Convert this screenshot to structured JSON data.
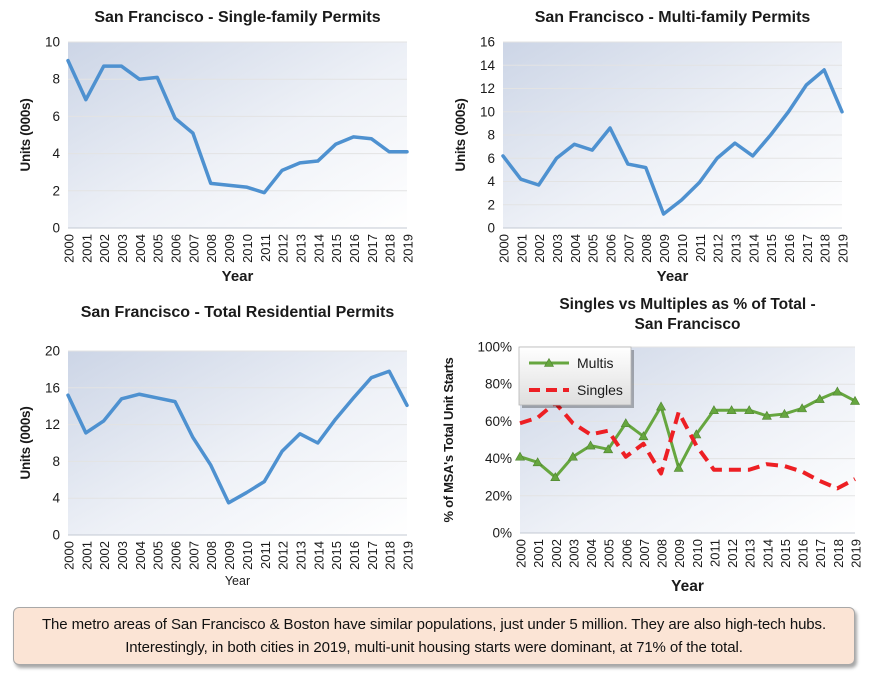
{
  "caption": {
    "lines": [
      "The metro areas of San Francisco & Boston have similar populations, just under 5 million. They are also high-tech hubs.",
      "Interestingly, in both cities in 2019, multi-unit housing starts were dominant, at 71% of the total."
    ]
  },
  "colors": {
    "blue": "#4e91d0",
    "green": "#66a63f",
    "green_dark": "#4e8430",
    "red": "#ed1f24",
    "grid": "#e3e3e3",
    "axis": "#c3c9d3",
    "plot_gradient_start": "#ccd5e6",
    "plot_gradient_mid": "#eef1f7",
    "plot_gradient_end": "#ffffff",
    "caption_bg": "#fbe4d5",
    "caption_border": "#a8a8a8"
  },
  "chart_data": [
    {
      "id": "single-family-permits",
      "type": "line",
      "title": [
        "San Francisco - Single-family Permits"
      ],
      "xlabel": "Year",
      "ylabel": "Units (000s)",
      "x": [
        "2000",
        "2001",
        "2002",
        "2003",
        "2004",
        "2005",
        "2006",
        "2007",
        "2008",
        "2009",
        "2010",
        "2011",
        "2012",
        "2013",
        "2014",
        "2015",
        "2016",
        "2017",
        "2018",
        "2019"
      ],
      "ylim": [
        0,
        10
      ],
      "yticks": [
        0,
        2,
        4,
        6,
        8,
        10
      ],
      "ytick_labels": [
        "0",
        "2",
        "4",
        "6",
        "8",
        "10"
      ],
      "grid": true,
      "legend": null,
      "series": [
        {
          "name": "Single-family permits",
          "color": "blue",
          "style": "solid",
          "marker": null,
          "values": [
            9.0,
            6.9,
            8.7,
            8.7,
            8.0,
            8.1,
            5.9,
            5.1,
            2.4,
            2.3,
            2.2,
            1.9,
            3.1,
            3.5,
            3.6,
            4.5,
            4.9,
            4.8,
            4.1,
            4.1
          ]
        }
      ]
    },
    {
      "id": "multi-family-permits",
      "type": "line",
      "title": [
        "San Francisco - Multi-family Permits"
      ],
      "xlabel": "Year",
      "ylabel": "Units (000s)",
      "x": [
        "2000",
        "2001",
        "2002",
        "2003",
        "2004",
        "2005",
        "2006",
        "2007",
        "2008",
        "2009",
        "2010",
        "2011",
        "2012",
        "2013",
        "2014",
        "2015",
        "2016",
        "2017",
        "2018",
        "2019"
      ],
      "ylim": [
        0,
        16
      ],
      "yticks": [
        0,
        2,
        4,
        6,
        8,
        10,
        12,
        14,
        16
      ],
      "ytick_labels": [
        "0",
        "2",
        "4",
        "6",
        "8",
        "10",
        "12",
        "14",
        "16"
      ],
      "grid": true,
      "legend": null,
      "series": [
        {
          "name": "Multi-family permits",
          "color": "blue",
          "style": "solid",
          "marker": null,
          "values": [
            6.2,
            4.2,
            3.7,
            6.0,
            7.2,
            6.7,
            8.6,
            5.5,
            5.2,
            1.2,
            2.4,
            3.9,
            6.0,
            7.3,
            6.2,
            8.0,
            10.0,
            12.3,
            13.6,
            10.0
          ]
        }
      ]
    },
    {
      "id": "total-residential-permits",
      "type": "line",
      "title": [
        "San Francisco - Total Residential Permits"
      ],
      "xlabel": "Year",
      "ylabel": "Units (000s)",
      "x": [
        "2000",
        "2001",
        "2002",
        "2003",
        "2004",
        "2005",
        "2006",
        "2007",
        "2008",
        "2009",
        "2010",
        "2011",
        "2012",
        "2013",
        "2014",
        "2015",
        "2016",
        "2017",
        "2018",
        "2019"
      ],
      "ylim": [
        0,
        20
      ],
      "yticks": [
        0,
        4,
        8,
        12,
        16,
        20
      ],
      "ytick_labels": [
        "0",
        "4",
        "8",
        "12",
        "16",
        "20"
      ],
      "grid": true,
      "legend": null,
      "series": [
        {
          "name": "Total residential permits",
          "color": "blue",
          "style": "solid",
          "marker": null,
          "values": [
            15.2,
            11.1,
            12.4,
            14.8,
            15.3,
            14.9,
            14.5,
            10.6,
            7.6,
            3.5,
            4.6,
            5.8,
            9.1,
            11.0,
            10.0,
            12.6,
            14.9,
            17.1,
            17.8,
            14.1
          ]
        }
      ]
    },
    {
      "id": "singles-vs-multis-pct",
      "type": "line",
      "title": [
        "Singles vs Multiples as % of Total -",
        "San Francisco"
      ],
      "xlabel": "Year",
      "ylabel": "% of MSA's Total Unit Starts",
      "x": [
        "2000",
        "2001",
        "2002",
        "2003",
        "2004",
        "2005",
        "2006",
        "2007",
        "2008",
        "2009",
        "2010",
        "2011",
        "2012",
        "2013",
        "2014",
        "2015",
        "2016",
        "2017",
        "2018",
        "2019"
      ],
      "ylim": [
        0,
        100
      ],
      "yticks": [
        0,
        20,
        40,
        60,
        80,
        100
      ],
      "ytick_labels": [
        "0%",
        "20%",
        "40%",
        "60%",
        "80%",
        "100%"
      ],
      "grid": true,
      "legend": {
        "position": "top-left",
        "entries": [
          "Multis",
          "Singles"
        ]
      },
      "series": [
        {
          "name": "Multis",
          "color": "green",
          "style": "solid",
          "marker": "triangle",
          "values": [
            41,
            38,
            30,
            41,
            47,
            45,
            59,
            52,
            68,
            35,
            53,
            66,
            66,
            66,
            63,
            64,
            67,
            72,
            76,
            71
          ]
        },
        {
          "name": "Singles",
          "color": "red",
          "style": "dashed",
          "marker": null,
          "values": [
            59,
            62,
            70,
            59,
            53,
            55,
            41,
            48,
            32,
            65,
            47,
            34,
            34,
            34,
            37,
            36,
            33,
            28,
            24,
            29
          ]
        }
      ]
    }
  ]
}
